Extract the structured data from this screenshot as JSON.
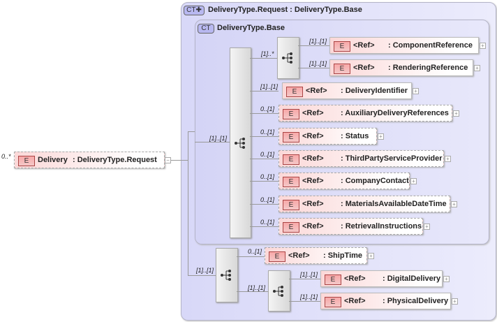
{
  "root": {
    "cardinality": "0..*",
    "badge": "E",
    "name": "Delivery",
    "type": ": DeliveryType.Request",
    "optional": true
  },
  "outer_type": {
    "badge": "CT✚",
    "title": "DeliveryType.Request : DeliveryType.Base"
  },
  "inner_type": {
    "badge": "CT",
    "title": "DeliveryType.Base"
  },
  "connectors": {
    "root_to_base": "[1]..[1]",
    "root_to_ext": "[1]..[1]",
    "choice_group": "[1]..*",
    "ship_seq": "[1]..[1]"
  },
  "base_elements": [
    {
      "card": "[1]..[1]",
      "ref": "<Ref>",
      "type": ": ComponentReference",
      "optional": false
    },
    {
      "card": "[1]..[1]",
      "ref": "<Ref>",
      "type": ": RenderingReference",
      "optional": false
    },
    {
      "card": "[1]..[1]",
      "ref": "<Ref>",
      "type": ": DeliveryIdentifier",
      "optional": false
    },
    {
      "card": "0..[1]",
      "ref": "<Ref>",
      "type": ": AuxiliaryDeliveryReferences",
      "optional": true
    },
    {
      "card": "0..[1]",
      "ref": "<Ref>",
      "type": ": Status",
      "optional": true
    },
    {
      "card": "0..[1]",
      "ref": "<Ref>",
      "type": ": ThirdPartyServiceProvider",
      "optional": true
    },
    {
      "card": "0..[1]",
      "ref": "<Ref>",
      "type": ": CompanyContact",
      "optional": true
    },
    {
      "card": "0..[1]",
      "ref": "<Ref>",
      "type": ": MaterialsAvailableDateTime",
      "optional": true
    },
    {
      "card": "0..[1]",
      "ref": "<Ref>",
      "type": ": RetrievalInstructions",
      "optional": true
    }
  ],
  "ext_elements": [
    {
      "card": "0..[1]",
      "ref": "<Ref>",
      "type": ": ShipTime",
      "optional": true
    },
    {
      "card": "[1]..[1]",
      "ref": "<Ref>",
      "type": ": DigitalDelivery",
      "optional": false
    },
    {
      "card": "[1]..[1]",
      "ref": "<Ref>",
      "type": ": PhysicalDelivery",
      "optional": false
    }
  ],
  "element_badge": "E",
  "expand_glyph": "+",
  "collapse_glyph": "−",
  "colors": {
    "type_box": "#dcdcf8",
    "element_fill": "#fbd8d8",
    "element_badge": "#f8a8a8"
  }
}
